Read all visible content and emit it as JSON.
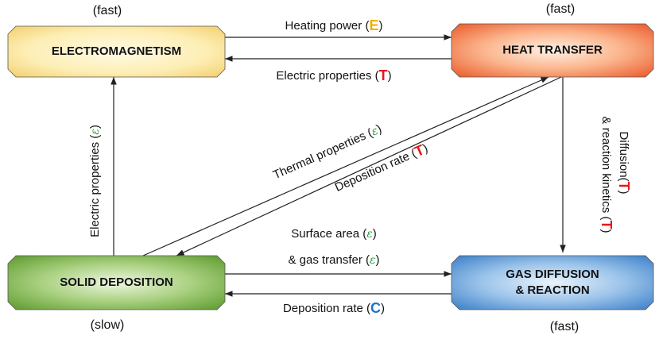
{
  "nodes": [
    {
      "label_lines": [
        "ELECTROMAGNETISM"
      ],
      "speed": "(fast)"
    },
    {
      "label_lines": [
        "HEAT TRANSFER"
      ],
      "speed": "(fast)"
    },
    {
      "label_lines": [
        "SOLID DEPOSITION"
      ],
      "speed": "(slow)"
    },
    {
      "label_lines": [
        "GAS DIFFUSION",
        "& REACTION"
      ],
      "speed": "(fast)"
    }
  ],
  "edges": [
    {
      "lines": [
        [
          "Heating power (",
          "E",
          ")"
        ]
      ]
    },
    {
      "lines": [
        [
          "Electric properties (",
          "T",
          ")"
        ]
      ]
    },
    {
      "lines": [
        [
          "Electric properties (",
          "ε",
          ")"
        ]
      ]
    },
    {
      "lines": [
        [
          "Thermal properties (",
          "ε",
          ")"
        ]
      ]
    },
    {
      "lines": [
        [
          "Deposition rate (",
          "T",
          ")"
        ]
      ]
    },
    {
      "lines": [
        [
          "Diffusion(",
          "T",
          ")"
        ],
        [
          "& reaction kinetics (",
          "T",
          ")"
        ]
      ]
    },
    {
      "lines": [
        [
          "Surface area (",
          "ε",
          ")"
        ],
        [
          "& gas transfer (",
          "ε",
          ")"
        ]
      ]
    },
    {
      "lines": [
        [
          "Deposition rate (",
          "C",
          ")"
        ]
      ]
    }
  ],
  "symbol_colors": {
    "E": "#f0b000",
    "T": "#e8141a",
    "C": "#1f74c0",
    "ε": "#2e9c3a"
  },
  "speed_colors": [
    "#7b3fa0",
    "#7b3fa0",
    "#3aa7e0",
    "#7b3fa0"
  ]
}
